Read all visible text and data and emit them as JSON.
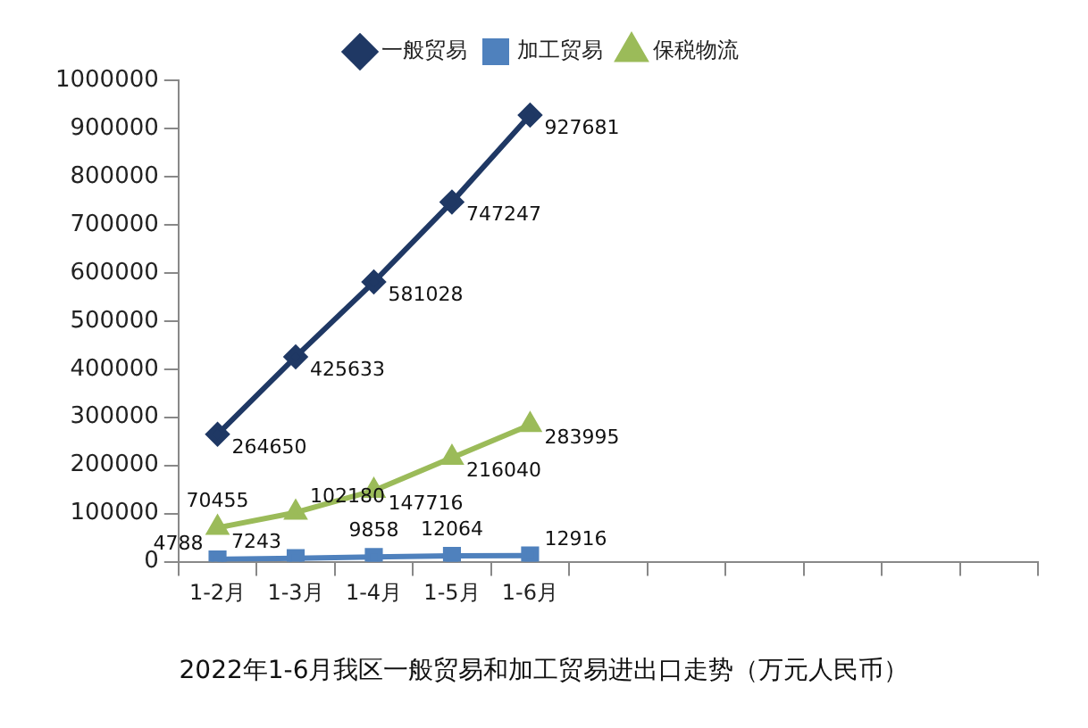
{
  "chart_data": {
    "type": "line",
    "title": "2022年1-6月我区一般贸易和加工贸易进出口走势（万元人民币）",
    "categories": [
      "1-2月",
      "1-3月",
      "1-4月",
      "1-5月",
      "1-6月",
      null,
      null,
      null,
      null,
      null,
      null
    ],
    "series": [
      {
        "name": "一般贸易",
        "color": "#1f3864",
        "marker": "diamond",
        "values": [
          264650,
          425633,
          581028,
          747247,
          927681,
          null,
          null,
          null,
          null,
          null,
          null
        ]
      },
      {
        "name": "加工贸易",
        "color": "#4f81bd",
        "marker": "square",
        "values": [
          4788,
          7243,
          9858,
          12064,
          12916,
          null,
          null,
          null,
          null,
          null,
          null
        ]
      },
      {
        "name": "保税物流",
        "color": "#9bbb59",
        "marker": "triangle",
        "values": [
          70455,
          102180,
          147716,
          216040,
          283995,
          null,
          null,
          null,
          null,
          null,
          null
        ]
      }
    ],
    "ylim": [
      0,
      1000000
    ],
    "yticks": [
      0,
      100000,
      200000,
      300000,
      400000,
      500000,
      600000,
      700000,
      800000,
      900000,
      1000000
    ],
    "grid": false,
    "legend": "top",
    "data_labels": true,
    "line_style": "solid"
  }
}
